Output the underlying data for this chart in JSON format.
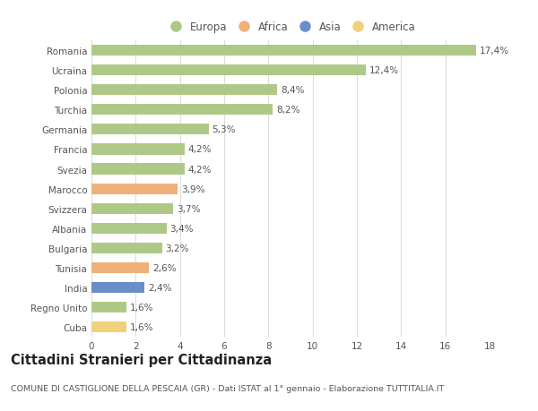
{
  "categories": [
    "Romania",
    "Ucraina",
    "Polonia",
    "Turchia",
    "Germania",
    "Francia",
    "Svezia",
    "Marocco",
    "Svizzera",
    "Albania",
    "Bulgaria",
    "Tunisia",
    "India",
    "Regno Unito",
    "Cuba"
  ],
  "values": [
    17.4,
    12.4,
    8.4,
    8.2,
    5.3,
    4.2,
    4.2,
    3.9,
    3.7,
    3.4,
    3.2,
    2.6,
    2.4,
    1.6,
    1.6
  ],
  "labels": [
    "17,4%",
    "12,4%",
    "8,4%",
    "8,2%",
    "5,3%",
    "4,2%",
    "4,2%",
    "3,9%",
    "3,7%",
    "3,4%",
    "3,2%",
    "2,6%",
    "2,4%",
    "1,6%",
    "1,6%"
  ],
  "continent": [
    "Europa",
    "Europa",
    "Europa",
    "Europa",
    "Europa",
    "Europa",
    "Europa",
    "Africa",
    "Europa",
    "Europa",
    "Europa",
    "Africa",
    "Asia",
    "Europa",
    "America"
  ],
  "colors": {
    "Europa": "#aec987",
    "Africa": "#f0b07a",
    "Asia": "#6b8ec7",
    "America": "#f0d07a"
  },
  "legend_order": [
    "Europa",
    "Africa",
    "Asia",
    "America"
  ],
  "title": "Cittadini Stranieri per Cittadinanza",
  "subtitle": "COMUNE DI CASTIGLIONE DELLA PESCAIA (GR) - Dati ISTAT al 1° gennaio - Elaborazione TUTTITALIA.IT",
  "xlim": [
    0,
    18
  ],
  "xticks": [
    0,
    2,
    4,
    6,
    8,
    10,
    12,
    14,
    16,
    18
  ],
  "bg_color": "#ffffff",
  "grid_color": "#dddddd",
  "bar_height": 0.55,
  "label_fontsize": 7.5,
  "title_fontsize": 10.5,
  "subtitle_fontsize": 6.8,
  "legend_fontsize": 8.5,
  "ytick_fontsize": 7.5,
  "xtick_fontsize": 7.5
}
